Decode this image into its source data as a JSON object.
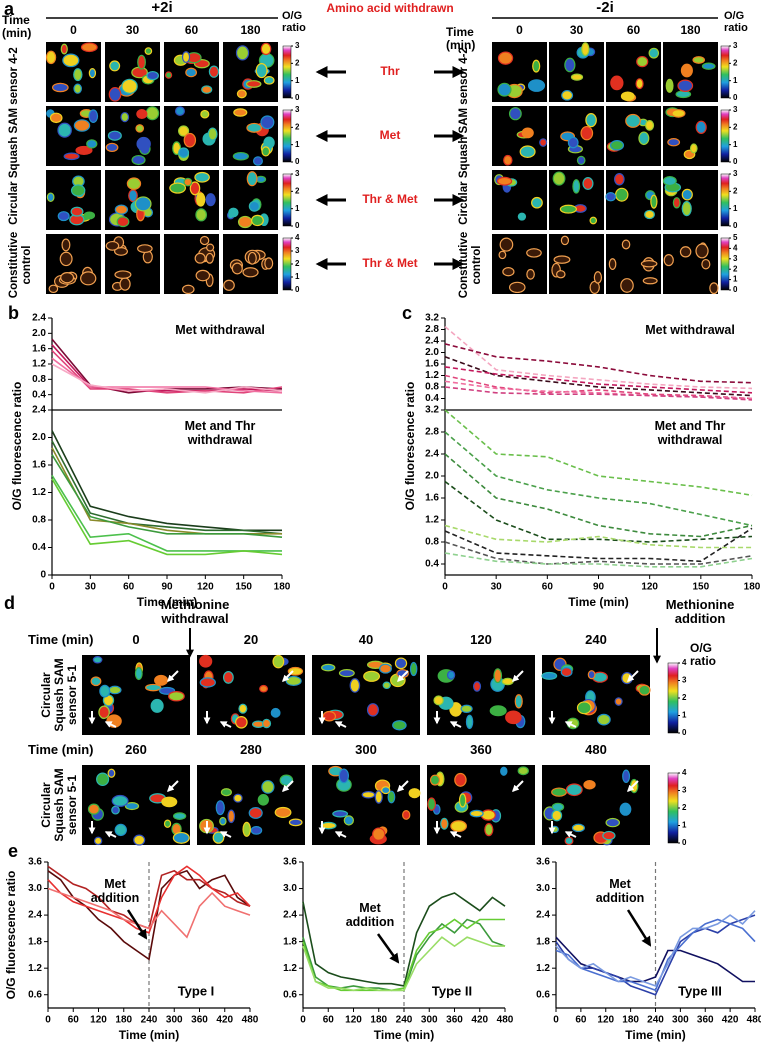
{
  "panel_a": {
    "label": "a",
    "left_header": "+2i",
    "right_header": "-2i",
    "center_header": "Amino acid withdrawn",
    "time_label": "Time (min)",
    "times": [
      "0",
      "30",
      "60",
      "180"
    ],
    "scale_label": "O/G ratio",
    "sensor_label": "Circular Squash SAM sensor 4-2",
    "control_label": "Constitutive control",
    "withdrawn": [
      "Thr",
      "Met",
      "Thr & Met",
      "Thr & Met"
    ],
    "left_colorbar_ticks": [
      [
        0,
        1,
        2,
        3
      ],
      [
        0,
        1,
        2,
        3
      ],
      [
        0,
        1,
        2,
        3
      ],
      [
        0,
        1,
        2,
        3,
        4
      ]
    ],
    "right_colorbar_ticks": [
      [
        0,
        1,
        2,
        3
      ],
      [
        0,
        1,
        2,
        3
      ],
      [
        0,
        1,
        2,
        3
      ],
      [
        0,
        1,
        2,
        3,
        4,
        5
      ]
    ]
  },
  "panel_d": {
    "label": "d",
    "time_label": "Time (min)",
    "times": [
      [
        "0",
        "20",
        "40",
        "120",
        "240"
      ],
      [
        "260",
        "280",
        "300",
        "360",
        "480"
      ]
    ],
    "withdrawal": "Methionine withdrawal",
    "addition": "Methionine addition",
    "scale_label": "O/G ratio",
    "sensor_label": "Circular Squash SAM sensor 5-1",
    "colorbar_ticks": [
      0,
      1,
      2,
      3,
      4
    ]
  },
  "chart_data": [
    {
      "type": "line",
      "panel": "b",
      "ylabel": "O/G fluorescence ratio",
      "annotation": "Met withdrawal",
      "x": [
        0,
        30,
        60,
        90,
        120,
        150,
        180
      ],
      "xlim": [
        0,
        180
      ],
      "ylim": [
        0,
        2.4
      ],
      "yticks": [
        0.4,
        0.8,
        1.2,
        1.6,
        {
          "value": 2,
          "label": "2.0"
        },
        2.4
      ],
      "line_style": "solid",
      "series": [
        {
          "color": "#7a0a35",
          "values": [
            1.85,
            0.65,
            0.45,
            0.55,
            0.55,
            0.6,
            0.55
          ]
        },
        {
          "color": "#c2185b",
          "values": [
            1.7,
            0.6,
            0.5,
            0.5,
            0.5,
            0.55,
            0.5
          ]
        },
        {
          "color": "#e0457b",
          "values": [
            1.55,
            0.55,
            0.55,
            0.45,
            0.5,
            0.45,
            0.6
          ]
        },
        {
          "color": "#f06fa0",
          "values": [
            1.35,
            0.6,
            0.6,
            0.6,
            0.6,
            0.5,
            0.45
          ]
        },
        {
          "color": "#f7a8c4",
          "values": [
            1.2,
            0.65,
            0.5,
            0.55,
            0.45,
            0.6,
            0.5
          ]
        }
      ]
    },
    {
      "type": "line",
      "annotation": "Met and Thr withdrawal",
      "xlabel": "Time (min)",
      "x": [
        0,
        30,
        60,
        90,
        120,
        150,
        180
      ],
      "xlim": [
        0,
        180
      ],
      "xticks": [
        0,
        30,
        60,
        90,
        120,
        150,
        180
      ],
      "ylim": [
        0,
        2.4
      ],
      "yticks": [
        0,
        0.4,
        0.8,
        1.2,
        1.6,
        {
          "value": 2,
          "label": "2.0"
        },
        2.4
      ],
      "line_style": "solid",
      "series": [
        {
          "color": "#1b3d1b",
          "values": [
            2.1,
            1.0,
            0.85,
            0.75,
            0.7,
            0.65,
            0.65
          ]
        },
        {
          "color": "#2e6b2e",
          "values": [
            1.95,
            0.9,
            0.75,
            0.7,
            0.65,
            0.65,
            0.6
          ]
        },
        {
          "color": "#8a8a2a",
          "values": [
            1.85,
            0.8,
            0.75,
            0.65,
            0.6,
            0.6,
            0.6
          ]
        },
        {
          "color": "#3c9a3c",
          "values": [
            1.75,
            0.85,
            0.7,
            0.6,
            0.6,
            0.6,
            0.55
          ]
        },
        {
          "color": "#4cc04c",
          "values": [
            1.45,
            0.55,
            0.6,
            0.35,
            0.35,
            0.35,
            0.35
          ]
        },
        {
          "color": "#66cc33",
          "values": [
            1.4,
            0.45,
            0.5,
            0.3,
            0.3,
            0.35,
            0.3
          ]
        }
      ]
    },
    {
      "type": "line",
      "panel": "c",
      "ylabel": "O/G fluorescence ratio",
      "annotation": "Met withdrawal",
      "x": [
        0,
        30,
        60,
        90,
        120,
        150,
        180
      ],
      "xlim": [
        0,
        180
      ],
      "ylim": [
        0,
        3.2
      ],
      "yticks": [
        0.4,
        0.8,
        1.2,
        1.6,
        {
          "value": 2,
          "label": "2.0"
        },
        2.4,
        2.8,
        3.2
      ],
      "line_style": "dashed",
      "series": [
        {
          "color": "#f4a6c0",
          "values": [
            2.9,
            1.4,
            1.2,
            1.05,
            0.9,
            0.8,
            0.75
          ]
        },
        {
          "color": "#8b0a3a",
          "values": [
            2.3,
            1.85,
            1.7,
            1.5,
            1.2,
            1.0,
            0.95
          ]
        },
        {
          "color": "#3a0a1a",
          "values": [
            1.85,
            1.2,
            1.0,
            0.8,
            0.7,
            0.6,
            0.5
          ]
        },
        {
          "color": "#c2185b",
          "values": [
            1.5,
            1.25,
            1.1,
            0.9,
            0.8,
            0.7,
            0.6
          ]
        },
        {
          "color": "#e0457b",
          "values": [
            1.2,
            0.8,
            0.6,
            0.7,
            0.55,
            0.5,
            0.4
          ]
        },
        {
          "color": "#f06fa0",
          "values": [
            1.0,
            0.75,
            0.65,
            0.6,
            0.5,
            0.45,
            0.4
          ]
        },
        {
          "color": "#d04080",
          "values": [
            0.8,
            0.6,
            0.55,
            0.55,
            0.5,
            0.45,
            0.35
          ]
        }
      ]
    },
    {
      "type": "line",
      "annotation": "Met and Thr withdrawal",
      "xlabel": "Time (min)",
      "x": [
        0,
        30,
        60,
        90,
        120,
        150,
        180
      ],
      "xlim": [
        0,
        180
      ],
      "xticks": [
        0,
        30,
        60,
        90,
        120,
        150,
        180
      ],
      "ylim": [
        0.2,
        3.2
      ],
      "yticks": [
        0.4,
        0.8,
        1.2,
        1.6,
        {
          "value": 2,
          "label": "2.0"
        },
        2.4,
        2.8,
        3.2
      ],
      "line_style": "dashed",
      "series": [
        {
          "color": "#6abf4b",
          "values": [
            3.2,
            2.4,
            2.35,
            2.0,
            1.9,
            1.8,
            1.65
          ]
        },
        {
          "color": "#4aa04a",
          "values": [
            2.8,
            2.0,
            1.75,
            1.6,
            1.5,
            1.3,
            1.1
          ]
        },
        {
          "color": "#3c8a3c",
          "values": [
            2.4,
            1.6,
            1.4,
            1.1,
            0.95,
            0.9,
            1.1
          ]
        },
        {
          "color": "#1b4d1b",
          "values": [
            1.9,
            1.2,
            0.85,
            0.85,
            0.8,
            0.85,
            0.9
          ]
        },
        {
          "color": "#a8d96a",
          "values": [
            1.1,
            0.85,
            0.8,
            0.9,
            0.75,
            0.7,
            0.7
          ]
        },
        {
          "color": "#222222",
          "values": [
            1.0,
            0.6,
            0.55,
            0.5,
            0.5,
            0.45,
            1.05
          ]
        },
        {
          "color": "#555555",
          "values": [
            0.8,
            0.5,
            0.4,
            0.45,
            0.4,
            0.4,
            0.55
          ]
        },
        {
          "color": "#8fd18f",
          "values": [
            0.6,
            0.45,
            0.4,
            0.4,
            0.35,
            0.35,
            0.5
          ]
        }
      ]
    },
    {
      "type": "line",
      "panel": "e",
      "ylabel": "O/G fluorescence ratio",
      "annotation": "Met addition",
      "label": "Type I",
      "xlabel": "Time (min)",
      "x": [
        0,
        30,
        60,
        90,
        120,
        150,
        180,
        210,
        240,
        270,
        300,
        330,
        360,
        390,
        420,
        450,
        480
      ],
      "xlim": [
        0,
        480
      ],
      "xticks": [
        0,
        60,
        120,
        180,
        240,
        300,
        360,
        420,
        480
      ],
      "ylim": [
        0.3,
        3.6
      ],
      "yticks": [
        0.6,
        1.2,
        1.8,
        2.4,
        {
          "value": 3,
          "label": "3.0"
        },
        3.6
      ],
      "vline": 240,
      "line_style": "solid",
      "series": [
        {
          "color": "#5a0a0a",
          "values": [
            3.4,
            3.2,
            2.8,
            2.6,
            2.3,
            2.1,
            1.8,
            1.6,
            1.4,
            3.0,
            3.3,
            3.4,
            3.0,
            3.2,
            3.3,
            2.8,
            2.6
          ]
        },
        {
          "color": "#b22222",
          "values": [
            3.5,
            3.3,
            3.1,
            3.0,
            2.8,
            2.5,
            2.4,
            2.2,
            2.1,
            3.3,
            3.4,
            3.2,
            3.2,
            3.0,
            2.9,
            2.7,
            2.6
          ]
        },
        {
          "color": "#e83030",
          "values": [
            3.2,
            2.9,
            2.7,
            2.6,
            2.5,
            2.4,
            2.3,
            2.1,
            2.0,
            2.8,
            3.3,
            3.5,
            3.3,
            3.0,
            2.8,
            2.9,
            2.6
          ]
        },
        {
          "color": "#f07070",
          "values": [
            3.0,
            2.9,
            2.8,
            2.7,
            2.6,
            2.5,
            2.3,
            2.2,
            2.1,
            2.5,
            2.2,
            1.9,
            2.6,
            2.9,
            2.6,
            2.5,
            2.4
          ]
        }
      ]
    },
    {
      "type": "line",
      "annotation": "Met addition",
      "label": "Type II",
      "xlabel": "Time (min)",
      "x": [
        0,
        30,
        60,
        90,
        120,
        150,
        180,
        210,
        240,
        270,
        300,
        330,
        360,
        390,
        420,
        450,
        480
      ],
      "xlim": [
        0,
        480
      ],
      "xticks": [
        0,
        60,
        120,
        180,
        240,
        300,
        360,
        420,
        480
      ],
      "ylim": [
        0.3,
        3.6
      ],
      "yticks": [
        0.6,
        1.2,
        1.8,
        2.4,
        {
          "value": 3,
          "label": "3.0"
        },
        3.6
      ],
      "vline": 240,
      "line_style": "solid",
      "series": [
        {
          "color": "#1b4d1b",
          "values": [
            2.7,
            1.3,
            1.1,
            1.0,
            0.95,
            0.9,
            0.85,
            0.85,
            0.8,
            2.0,
            2.6,
            2.8,
            2.9,
            2.7,
            2.5,
            2.8,
            2.6
          ]
        },
        {
          "color": "#3c9a3c",
          "values": [
            1.9,
            1.0,
            0.8,
            0.75,
            0.8,
            0.75,
            0.75,
            0.7,
            0.7,
            1.5,
            1.9,
            2.2,
            2.0,
            2.3,
            2.2,
            1.8,
            1.7
          ]
        },
        {
          "color": "#66cc33",
          "values": [
            1.8,
            0.9,
            0.8,
            0.7,
            0.7,
            0.7,
            0.7,
            0.7,
            0.75,
            1.6,
            2.0,
            2.1,
            2.3,
            2.1,
            2.3,
            2.3,
            2.3
          ]
        },
        {
          "color": "#99dd66",
          "values": [
            1.7,
            0.9,
            0.75,
            0.75,
            0.7,
            0.75,
            0.7,
            0.7,
            0.7,
            1.3,
            1.6,
            1.9,
            1.7,
            1.9,
            1.8,
            1.7,
            1.7
          ]
        }
      ]
    },
    {
      "type": "line",
      "annotation": "Met addition",
      "label": "Type III",
      "xlabel": "Time (min)",
      "x": [
        0,
        30,
        60,
        90,
        120,
        150,
        180,
        210,
        240,
        270,
        300,
        330,
        360,
        390,
        420,
        450,
        480
      ],
      "xlim": [
        0,
        480
      ],
      "xticks": [
        0,
        60,
        120,
        180,
        240,
        300,
        360,
        420,
        480
      ],
      "ylim": [
        0.3,
        3.6
      ],
      "yticks": [
        0.6,
        1.2,
        1.8,
        2.4,
        {
          "value": 3,
          "label": "3.0"
        },
        3.6
      ],
      "vline": 240,
      "line_style": "solid",
      "series": [
        {
          "color": "#101060",
          "values": [
            1.9,
            1.6,
            1.3,
            1.2,
            1.1,
            1.0,
            0.9,
            0.9,
            1.0,
            1.6,
            1.6,
            1.5,
            1.4,
            1.3,
            1.1,
            0.9,
            0.9
          ]
        },
        {
          "color": "#2b3fa8",
          "values": [
            1.8,
            1.4,
            1.2,
            1.2,
            1.1,
            1.0,
            0.8,
            0.7,
            0.6,
            1.2,
            1.8,
            2.0,
            2.1,
            2.0,
            2.2,
            2.3,
            2.4
          ]
        },
        {
          "color": "#4a6fd0",
          "values": [
            1.6,
            1.5,
            1.2,
            1.1,
            1.0,
            0.9,
            0.9,
            0.8,
            0.7,
            1.4,
            1.7,
            2.0,
            2.2,
            2.3,
            2.2,
            2.1,
            1.8
          ]
        },
        {
          "color": "#7a9ae0",
          "values": [
            1.7,
            1.4,
            1.2,
            1.3,
            1.1,
            0.9,
            1.0,
            0.9,
            0.8,
            1.3,
            1.9,
            2.1,
            2.1,
            2.2,
            2.4,
            2.2,
            2.5
          ]
        }
      ]
    }
  ]
}
